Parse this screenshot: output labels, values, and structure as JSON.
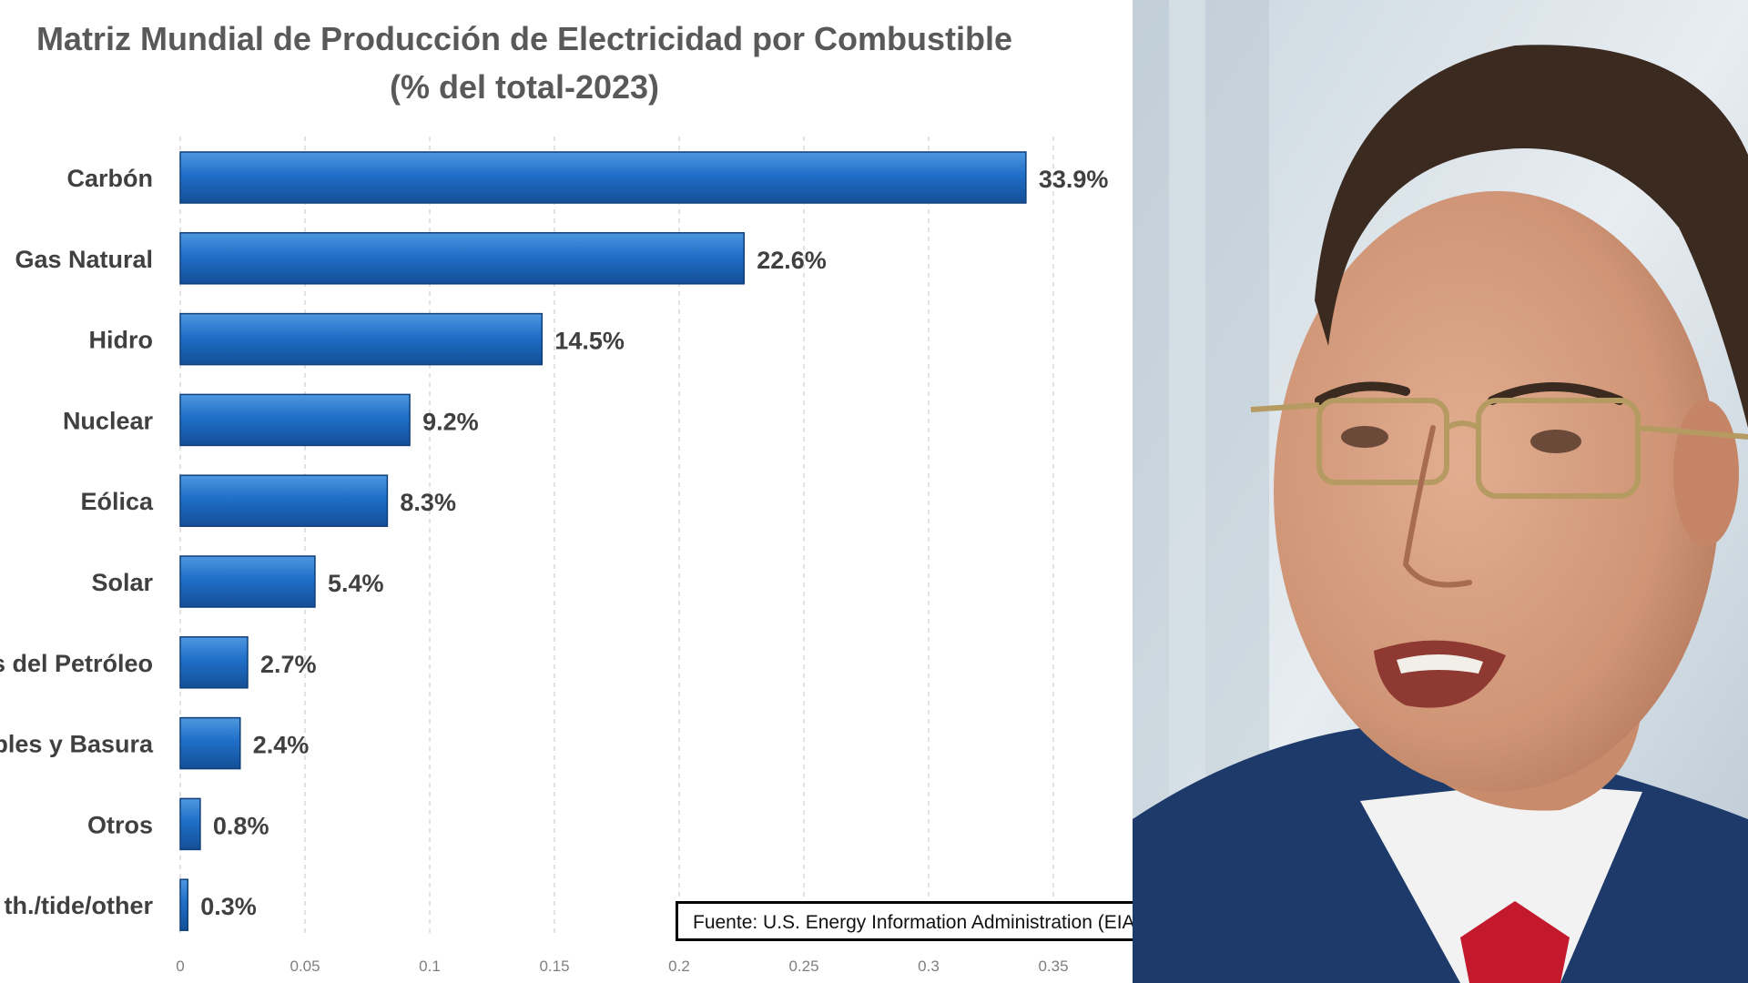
{
  "chart_data": {
    "type": "bar",
    "orientation": "horizontal",
    "title": "Matriz Mundial de Producción de Electricidad por Combustible",
    "subtitle": "(% del total-2023)",
    "categories": [
      "Carbón",
      "Gas Natural",
      "Hidro",
      "Nuclear",
      "Eólica",
      "Solar",
      "s del Petróleo",
      "bles y Basura",
      "Otros",
      "th./tide/other"
    ],
    "values": [
      0.339,
      0.226,
      0.145,
      0.092,
      0.083,
      0.054,
      0.027,
      0.024,
      0.008,
      0.003
    ],
    "data_labels": [
      "33.9%",
      "22.6%",
      "14.5%",
      "9.2%",
      "8.3%",
      "5.4%",
      "2.7%",
      "2.4%",
      "0.8%",
      "0.3%"
    ],
    "x_ticks": [
      "0",
      "0.05",
      "0.1",
      "0.15",
      "0.2",
      "0.25",
      "0.3",
      "0.35"
    ],
    "xlim": [
      0,
      0.38
    ],
    "grid": "vertical dashed",
    "bar_color": "#1f6fc8"
  },
  "source": "Fuente: U.S. Energy Information Administration (EIA)",
  "photo": {
    "subject": "portrait-photo",
    "colors": {
      "suit": "#1d3a6b",
      "tie": "#c4182c",
      "skin": "#d7a184",
      "hair": "#3b2a20",
      "background": "#dde6ec"
    }
  }
}
